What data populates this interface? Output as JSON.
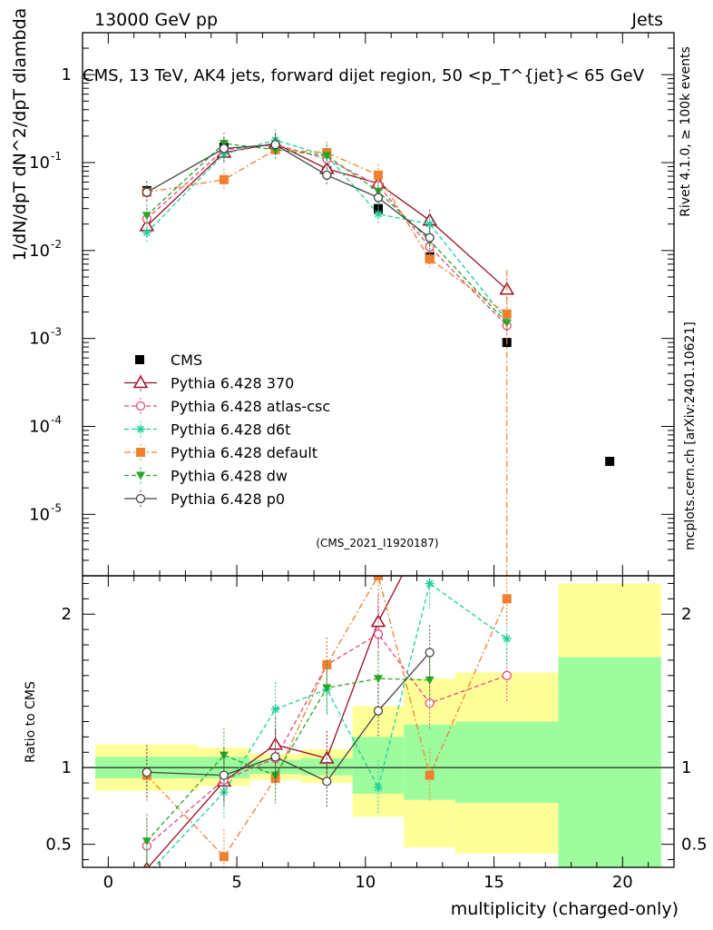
{
  "header": {
    "left": "13000 GeV pp",
    "right": "Jets"
  },
  "side_labels": {
    "rivet": "Rivet 4.1.0, ≥ 100k events",
    "mcplots": "mcplots.cern.ch [arXiv:2401.10621]"
  },
  "colors": {
    "cms": "#000000",
    "p370": "#9b0f24",
    "atlas": "#e8487c",
    "d6t": "#1fcf9a",
    "default": "#f08030",
    "dw": "#27a627",
    "p0": "#444444",
    "band_inner": "#9dfc9d",
    "band_outer": "#ffff99"
  },
  "chart_data": [
    {
      "id": "main",
      "type": "line",
      "title": "CMS, 13 TeV, AK4 jets, forward dijet region, 50 <p_T^{jet}< 65 GeV",
      "ylabel": "1/dN/dpT dN^2/dpT dlambda",
      "yscale": "log",
      "ylim": [
        2e-06,
        3
      ],
      "xlim": [
        -1,
        22
      ],
      "yticks": [
        "1",
        "10^-1",
        "10^-2",
        "10^-3",
        "10^-4",
        "10^-5"
      ],
      "watermark": "(CMS_2021_I1920187)",
      "series": [
        {
          "key": "cms",
          "name": "CMS",
          "marker": "square",
          "x": [
            1.5,
            4.5,
            6.5,
            8.5,
            10.5,
            12.5,
            15.5,
            19.5
          ],
          "y": [
            0.048,
            0.15,
            0.15,
            0.08,
            0.03,
            0.0085,
            0.0009,
            4e-05
          ]
        },
        {
          "key": "p370",
          "name": "Pythia 6.428 370",
          "marker": "open-triangle",
          "dash": "solid",
          "x": [
            1.5,
            4.5,
            6.5,
            8.5,
            10.5,
            12.5,
            15.5
          ],
          "y": [
            0.019,
            0.13,
            0.165,
            0.085,
            0.058,
            0.022,
            0.0036
          ]
        },
        {
          "key": "atlas",
          "name": "Pythia 6.428 atlas-csc",
          "marker": "open-circle",
          "dash": "dashed",
          "x": [
            1.5,
            4.5,
            6.5,
            8.5,
            10.5,
            12.5,
            15.5
          ],
          "y": [
            0.023,
            0.14,
            0.16,
            0.11,
            0.055,
            0.011,
            0.0014
          ]
        },
        {
          "key": "d6t",
          "name": "Pythia 6.428 d6t",
          "marker": "star",
          "dash": "dashed",
          "x": [
            1.5,
            4.5,
            6.5,
            8.5,
            10.5,
            12.5,
            15.5
          ],
          "y": [
            0.016,
            0.125,
            0.18,
            0.12,
            0.026,
            0.02,
            0.0016
          ]
        },
        {
          "key": "default",
          "name": "Pythia 6.428 default",
          "marker": "square",
          "dash": "dashdot",
          "x": [
            1.5,
            4.5,
            6.5,
            8.5,
            10.5,
            12.5,
            15.5
          ],
          "y": [
            0.046,
            0.064,
            0.14,
            0.13,
            0.072,
            0.008,
            0.0019
          ]
        },
        {
          "key": "dw",
          "name": "Pythia 6.428 dw",
          "marker": "down-triangle",
          "dash": "dashed",
          "x": [
            1.5,
            4.5,
            6.5,
            8.5,
            10.5,
            12.5,
            15.5
          ],
          "y": [
            0.025,
            0.165,
            0.14,
            0.12,
            0.047,
            0.013,
            0.0015
          ]
        },
        {
          "key": "p0",
          "name": "Pythia 6.428 p0",
          "marker": "open-circle",
          "dash": "solid",
          "x": [
            1.5,
            4.5,
            6.5,
            8.5,
            10.5,
            12.5
          ],
          "y": [
            0.046,
            0.145,
            0.16,
            0.072,
            0.04,
            0.014
          ]
        }
      ]
    },
    {
      "id": "ratio",
      "type": "line",
      "ylabel": "Ratio to CMS",
      "xlabel": "multiplicity (charged-only)",
      "ylim": [
        0.35,
        2.25
      ],
      "xlim": [
        -1,
        22
      ],
      "xticks": [
        "0",
        "5",
        "10",
        "15",
        "20"
      ],
      "yticks": [
        "0.5",
        "1",
        "2"
      ],
      "bands": [
        {
          "x0": -0.5,
          "x1": 3.5,
          "inner": [
            0.93,
            1.07
          ],
          "outer": [
            0.85,
            1.15
          ]
        },
        {
          "x0": 3.5,
          "x1": 5.5,
          "inner": [
            0.93,
            1.07
          ],
          "outer": [
            0.88,
            1.13
          ]
        },
        {
          "x0": 5.5,
          "x1": 7.5,
          "inner": [
            0.96,
            1.05
          ],
          "outer": [
            0.92,
            1.09
          ]
        },
        {
          "x0": 7.5,
          "x1": 9.5,
          "inner": [
            0.95,
            1.06
          ],
          "outer": [
            0.9,
            1.12
          ]
        },
        {
          "x0": 9.5,
          "x1": 11.5,
          "inner": [
            0.83,
            1.2
          ],
          "outer": [
            0.68,
            1.4
          ]
        },
        {
          "x0": 11.5,
          "x1": 13.5,
          "inner": [
            0.79,
            1.28
          ],
          "outer": [
            0.48,
            1.58
          ]
        },
        {
          "x0": 13.5,
          "x1": 17.5,
          "inner": [
            0.77,
            1.3
          ],
          "outer": [
            0.44,
            1.62
          ]
        },
        {
          "x0": 17.5,
          "x1": 21.5,
          "inner": [
            0.35,
            1.72
          ],
          "outer": [
            0.35,
            2.2
          ]
        }
      ],
      "series": [
        {
          "key": "p370",
          "x": [
            1.5,
            4.5,
            6.5,
            8.5,
            10.5,
            12.5
          ],
          "y": [
            0.34,
            0.91,
            1.15,
            1.06,
            1.95,
            2.6
          ]
        },
        {
          "key": "atlas",
          "x": [
            1.5,
            4.5,
            6.5,
            8.5,
            10.5,
            12.5,
            15.5
          ],
          "y": [
            0.49,
            0.92,
            1.06,
            1.67,
            1.87,
            1.42,
            1.6
          ]
        },
        {
          "key": "d6t",
          "x": [
            1.5,
            4.5,
            6.5,
            8.5,
            10.5,
            12.5,
            15.5
          ],
          "y": [
            0.3,
            0.84,
            1.38,
            1.51,
            0.87,
            2.2,
            1.84
          ]
        },
        {
          "key": "default",
          "x": [
            1.5,
            4.5,
            6.5,
            8.5,
            10.5,
            12.5,
            15.5
          ],
          "y": [
            0.95,
            0.42,
            0.93,
            1.67,
            2.25,
            0.95,
            2.1
          ]
        },
        {
          "key": "dw",
          "x": [
            1.5,
            4.5,
            6.5,
            8.5,
            10.5,
            12.5
          ],
          "y": [
            0.52,
            1.08,
            0.95,
            1.52,
            1.58,
            1.57
          ]
        },
        {
          "key": "p0",
          "x": [
            1.5,
            4.5,
            6.5,
            8.5,
            10.5,
            12.5
          ],
          "y": [
            0.97,
            0.95,
            1.07,
            0.91,
            1.37,
            1.75
          ]
        }
      ]
    }
  ]
}
